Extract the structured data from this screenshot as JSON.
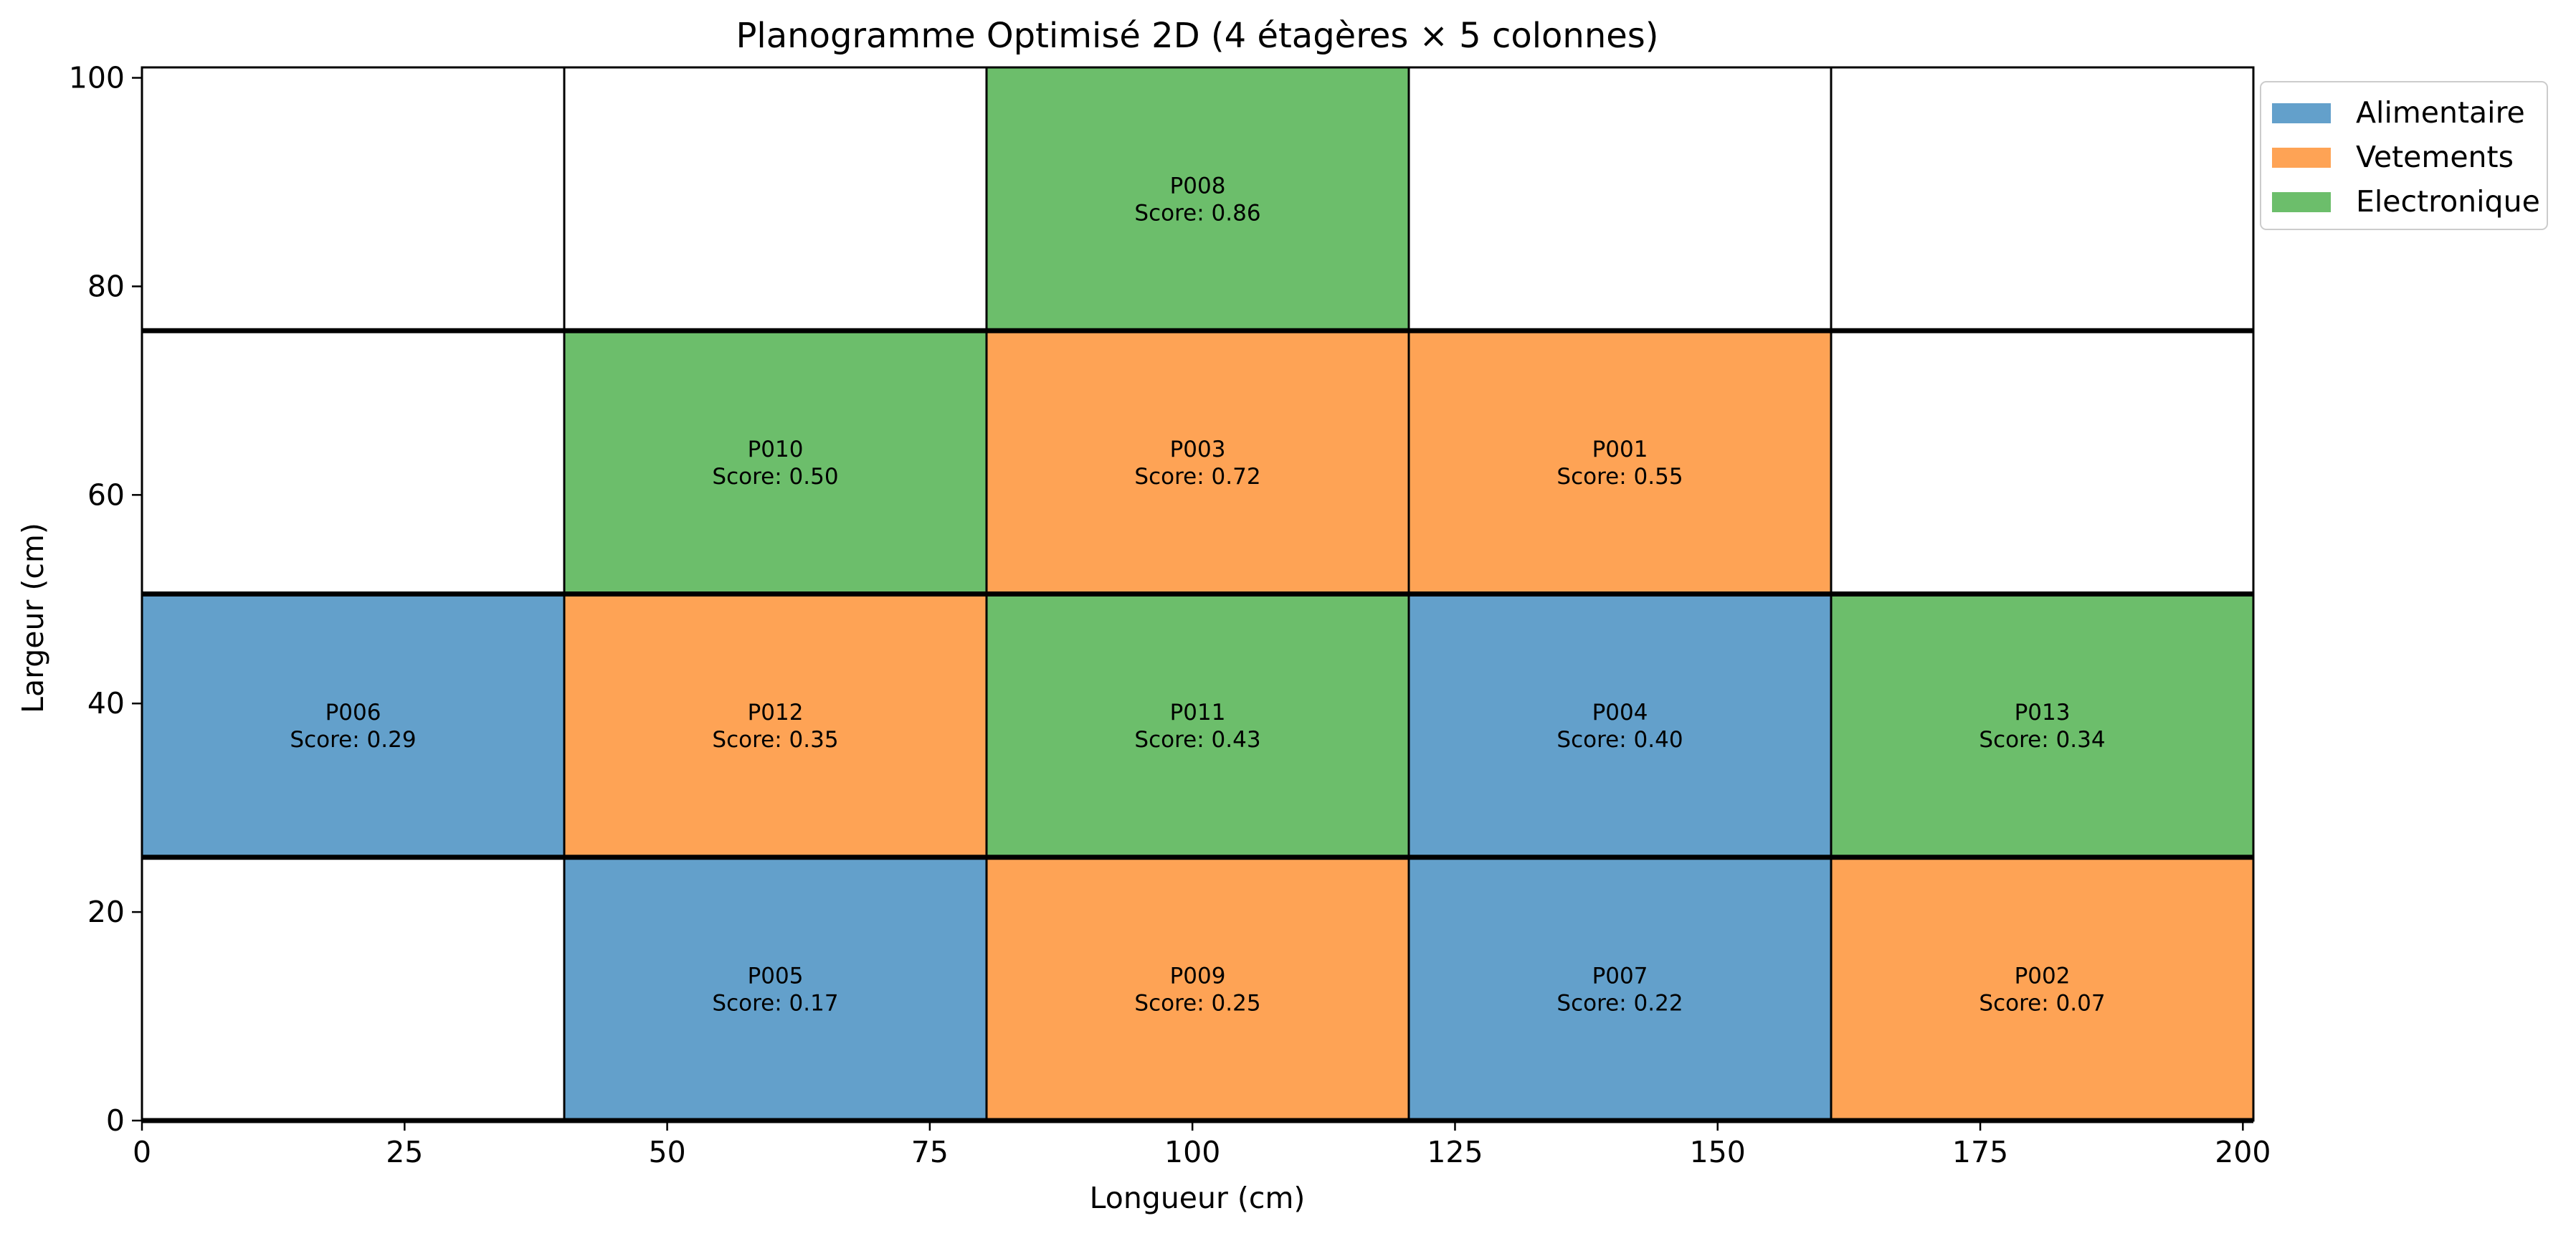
{
  "chart_data": {
    "type": "heatmap",
    "title": "Planogramme Optimisé 2D (4 étagères × 5 colonnes)",
    "xlabel": "Longueur (cm)",
    "ylabel": "Largeur (cm)",
    "xlim": [
      0,
      201
    ],
    "ylim": [
      0,
      101
    ],
    "xticks": [
      0,
      25,
      50,
      75,
      100,
      125,
      150,
      175,
      200
    ],
    "yticks": [
      0,
      20,
      40,
      60,
      80,
      100
    ],
    "grid": false,
    "legend_position": "top-right, outside plot",
    "shelf_boundaries": [
      25.25,
      50.5,
      75.75
    ],
    "column_boundaries": [
      40.2,
      80.4,
      120.6,
      160.8
    ],
    "categories": [
      {
        "name": "Alimentaire",
        "color": "#63a0cb"
      },
      {
        "name": "Vetements",
        "color": "#fea355"
      },
      {
        "name": "Electronique",
        "color": "#6cbe6b"
      }
    ],
    "score_prefix": "Score: ",
    "cells": [
      {
        "shelf": 0,
        "col": 1,
        "product": "P005",
        "score": "0.17",
        "category": "Alimentaire"
      },
      {
        "shelf": 0,
        "col": 2,
        "product": "P009",
        "score": "0.25",
        "category": "Vetements"
      },
      {
        "shelf": 0,
        "col": 3,
        "product": "P007",
        "score": "0.22",
        "category": "Alimentaire"
      },
      {
        "shelf": 0,
        "col": 4,
        "product": "P002",
        "score": "0.07",
        "category": "Vetements"
      },
      {
        "shelf": 1,
        "col": 0,
        "product": "P006",
        "score": "0.29",
        "category": "Alimentaire"
      },
      {
        "shelf": 1,
        "col": 1,
        "product": "P012",
        "score": "0.35",
        "category": "Vetements"
      },
      {
        "shelf": 1,
        "col": 2,
        "product": "P011",
        "score": "0.43",
        "category": "Electronique"
      },
      {
        "shelf": 1,
        "col": 3,
        "product": "P004",
        "score": "0.40",
        "category": "Alimentaire"
      },
      {
        "shelf": 1,
        "col": 4,
        "product": "P013",
        "score": "0.34",
        "category": "Electronique"
      },
      {
        "shelf": 2,
        "col": 1,
        "product": "P010",
        "score": "0.50",
        "category": "Electronique"
      },
      {
        "shelf": 2,
        "col": 2,
        "product": "P003",
        "score": "0.72",
        "category": "Vetements"
      },
      {
        "shelf": 2,
        "col": 3,
        "product": "P001",
        "score": "0.55",
        "category": "Vetements"
      },
      {
        "shelf": 3,
        "col": 2,
        "product": "P008",
        "score": "0.86",
        "category": "Electronique"
      }
    ]
  }
}
